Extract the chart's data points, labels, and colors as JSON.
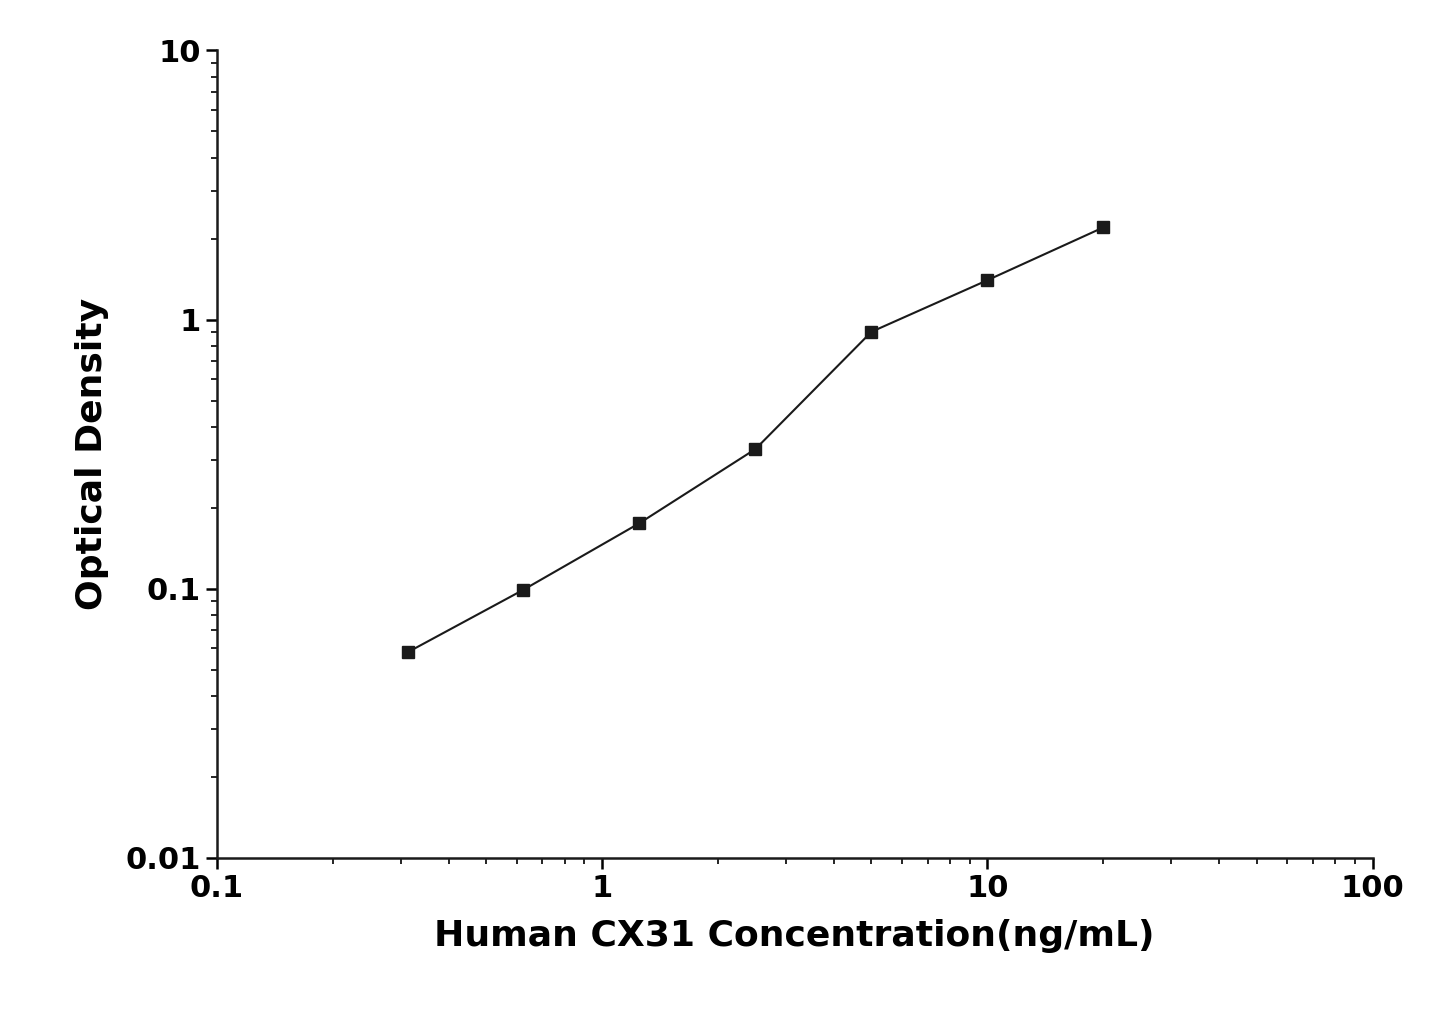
{
  "x": [
    0.313,
    0.625,
    1.25,
    2.5,
    5.0,
    10.0,
    20.0
  ],
  "y": [
    0.058,
    0.099,
    0.175,
    0.33,
    0.9,
    1.4,
    2.2
  ],
  "xlabel": "Human CX31 Concentration(ng/mL)",
  "ylabel": "Optical Density",
  "xlim": [
    0.1,
    100
  ],
  "ylim": [
    0.01,
    10
  ],
  "line_color": "#1a1a1a",
  "marker_color": "#1a1a1a",
  "marker": "s",
  "marker_size": 9,
  "line_width": 1.5,
  "xlabel_fontsize": 26,
  "ylabel_fontsize": 26,
  "tick_fontsize": 22,
  "background_color": "#ffffff",
  "spine_color": "#1a1a1a",
  "spine_linewidth": 1.8
}
